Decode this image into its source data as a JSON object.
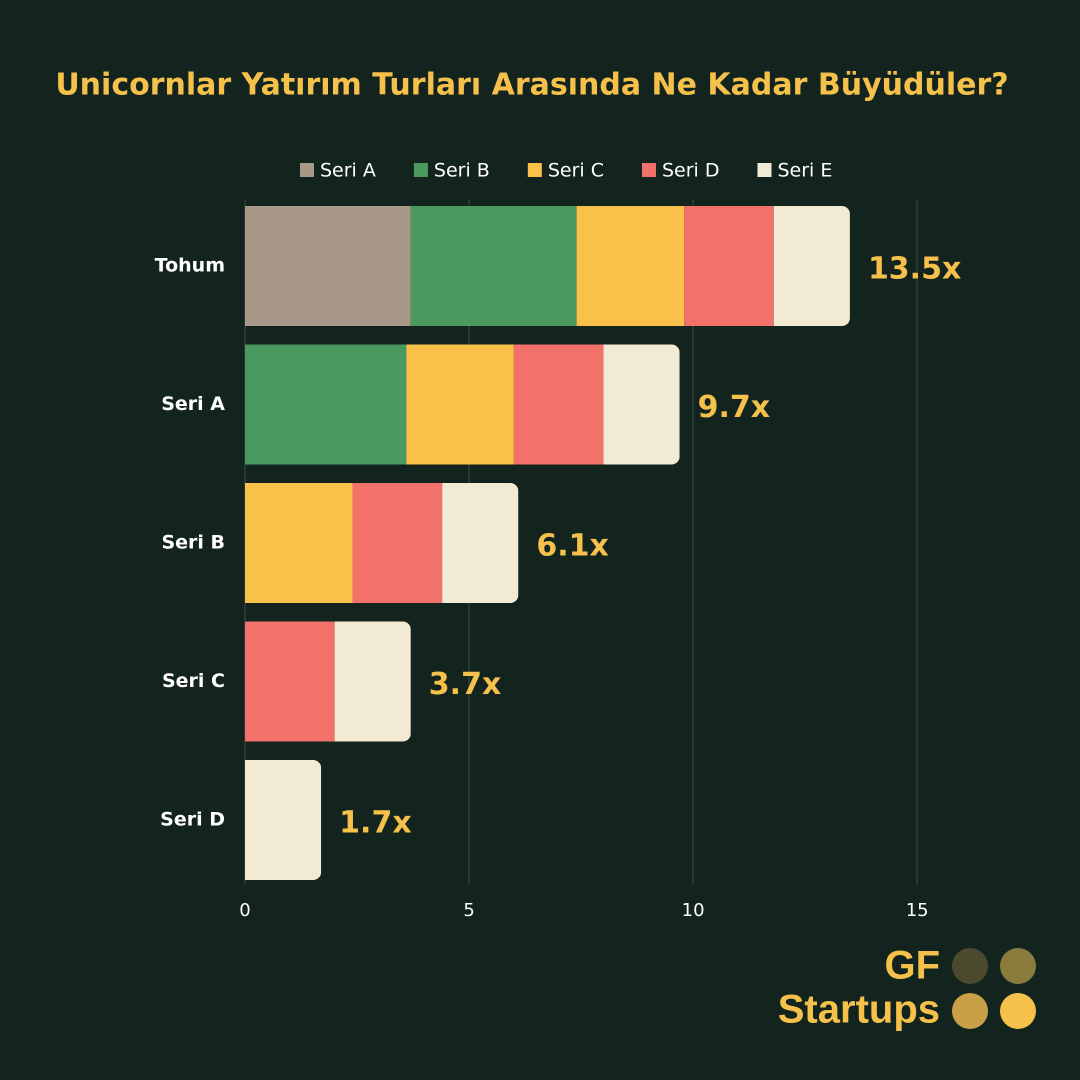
{
  "chart_data": {
    "type": "stacked-bar-horizontal",
    "title": "Unicornlar Yatırım Turları Arasında Ne Kadar Büyüdüler?",
    "categories": [
      "Tohum",
      "Seri A",
      "Seri B",
      "Seri C",
      "Seri D"
    ],
    "series": [
      {
        "name": "Seri A",
        "color": "#a89888",
        "values": [
          3.7,
          null,
          null,
          null,
          null
        ]
      },
      {
        "name": "Seri B",
        "color": "#4a9a60",
        "values": [
          3.7,
          3.6,
          null,
          null,
          null
        ]
      },
      {
        "name": "Seri C",
        "color": "#f9c14a",
        "values": [
          2.4,
          2.4,
          2.4,
          null,
          null
        ]
      },
      {
        "name": "Seri D",
        "color": "#f2716b",
        "values": [
          2.0,
          2.0,
          2.0,
          2.0,
          null
        ]
      },
      {
        "name": "Seri E",
        "color": "#f3ead4",
        "values": [
          1.7,
          1.7,
          1.7,
          1.7,
          1.7
        ]
      }
    ],
    "totals": [
      13.5,
      9.7,
      6.1,
      3.7,
      1.7
    ],
    "total_labels": [
      "13.5x",
      "9.7x",
      "6.1x",
      "3.7x",
      "1.7x"
    ],
    "xlim": [
      0,
      18.5
    ],
    "xticks": [
      0,
      5,
      10,
      15
    ],
    "grid": true
  },
  "logo": {
    "line1": "GF",
    "line2": "Startups"
  }
}
